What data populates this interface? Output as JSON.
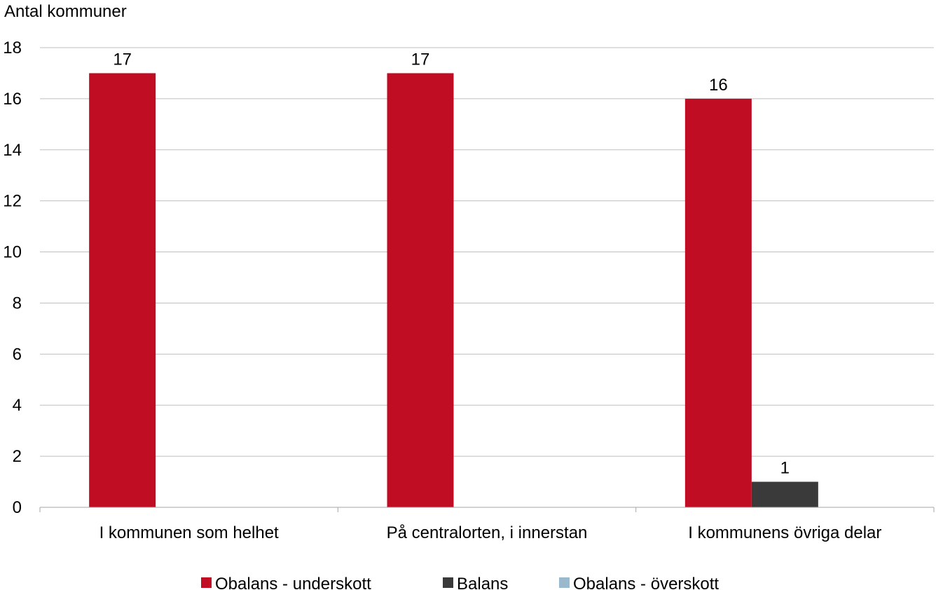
{
  "chart_data": {
    "type": "bar",
    "title": "",
    "xlabel": "",
    "ylabel": "Antal kommuner",
    "ylim": [
      0,
      18
    ],
    "yticks": [
      0,
      2,
      4,
      6,
      8,
      10,
      12,
      14,
      16,
      18
    ],
    "categories": [
      "I kommunen som helhet",
      "På centralorten, i innerstan",
      "I kommunens övriga delar"
    ],
    "series": [
      {
        "name": "Obalans - underskott",
        "color": "#c00d24",
        "values": [
          17,
          17,
          16
        ]
      },
      {
        "name": "Balans",
        "color": "#3a3a3a",
        "values": [
          0,
          0,
          1
        ]
      },
      {
        "name": "Obalans - överskott",
        "color": "#9bb9cc",
        "values": [
          0,
          0,
          0
        ]
      }
    ],
    "data_labels": [
      {
        "series": 0,
        "category": 0,
        "text": "17"
      },
      {
        "series": 0,
        "category": 1,
        "text": "17"
      },
      {
        "series": 0,
        "category": 2,
        "text": "16"
      },
      {
        "series": 1,
        "category": 2,
        "text": "1"
      }
    ],
    "grid": true,
    "legend": "bottom"
  }
}
